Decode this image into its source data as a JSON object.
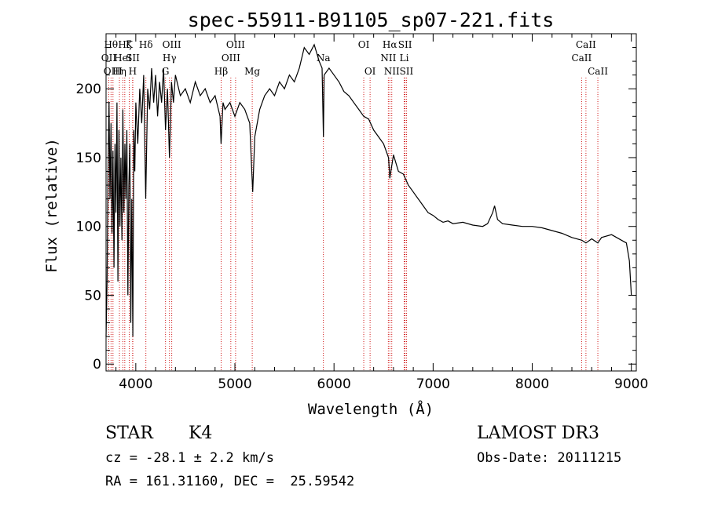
{
  "chart_data": {
    "type": "line",
    "title": "spec-55911-B91105_sp07-221.fits",
    "xlabel": "Wavelength (Å)",
    "ylabel": "Flux (relative)",
    "xlim": [
      3700,
      9050
    ],
    "ylim": [
      -5,
      240
    ],
    "xticks": [
      4000,
      5000,
      6000,
      7000,
      8000,
      9000
    ],
    "yticks": [
      0,
      50,
      100,
      150,
      200
    ],
    "grid": false,
    "series": [
      {
        "name": "flux",
        "points": [
          [
            3700,
            20
          ],
          [
            3710,
            60
          ],
          [
            3720,
            140
          ],
          [
            3730,
            190
          ],
          [
            3740,
            120
          ],
          [
            3750,
            175
          ],
          [
            3760,
            95
          ],
          [
            3770,
            155
          ],
          [
            3780,
            70
          ],
          [
            3790,
            160
          ],
          [
            3800,
            110
          ],
          [
            3810,
            190
          ],
          [
            3820,
            60
          ],
          [
            3830,
            170
          ],
          [
            3840,
            100
          ],
          [
            3850,
            150
          ],
          [
            3860,
            90
          ],
          [
            3870,
            185
          ],
          [
            3880,
            110
          ],
          [
            3890,
            160
          ],
          [
            3900,
            120
          ],
          [
            3910,
            170
          ],
          [
            3920,
            50
          ],
          [
            3930,
            130
          ],
          [
            3940,
            160
          ],
          [
            3950,
            30
          ],
          [
            3960,
            120
          ],
          [
            3970,
            20
          ],
          [
            3980,
            170
          ],
          [
            3990,
            140
          ],
          [
            4000,
            190
          ],
          [
            4020,
            160
          ],
          [
            4040,
            200
          ],
          [
            4060,
            175
          ],
          [
            4080,
            210
          ],
          [
            4100,
            120
          ],
          [
            4120,
            200
          ],
          [
            4140,
            185
          ],
          [
            4160,
            215
          ],
          [
            4180,
            190
          ],
          [
            4200,
            210
          ],
          [
            4220,
            180
          ],
          [
            4240,
            205
          ],
          [
            4260,
            190
          ],
          [
            4280,
            215
          ],
          [
            4300,
            170
          ],
          [
            4320,
            200
          ],
          [
            4340,
            150
          ],
          [
            4360,
            205
          ],
          [
            4380,
            190
          ],
          [
            4400,
            210
          ],
          [
            4450,
            195
          ],
          [
            4500,
            200
          ],
          [
            4550,
            190
          ],
          [
            4600,
            205
          ],
          [
            4650,
            195
          ],
          [
            4700,
            200
          ],
          [
            4750,
            190
          ],
          [
            4800,
            195
          ],
          [
            4850,
            180
          ],
          [
            4860,
            160
          ],
          [
            4880,
            190
          ],
          [
            4900,
            185
          ],
          [
            4950,
            190
          ],
          [
            5000,
            180
          ],
          [
            5050,
            190
          ],
          [
            5100,
            185
          ],
          [
            5150,
            175
          ],
          [
            5170,
            140
          ],
          [
            5180,
            125
          ],
          [
            5200,
            165
          ],
          [
            5250,
            185
          ],
          [
            5300,
            195
          ],
          [
            5350,
            200
          ],
          [
            5400,
            195
          ],
          [
            5450,
            205
          ],
          [
            5500,
            200
          ],
          [
            5550,
            210
          ],
          [
            5600,
            205
          ],
          [
            5650,
            215
          ],
          [
            5700,
            230
          ],
          [
            5750,
            225
          ],
          [
            5800,
            232
          ],
          [
            5850,
            220
          ],
          [
            5880,
            215
          ],
          [
            5893,
            165
          ],
          [
            5900,
            210
          ],
          [
            5950,
            215
          ],
          [
            6000,
            210
          ],
          [
            6050,
            205
          ],
          [
            6100,
            198
          ],
          [
            6150,
            195
          ],
          [
            6200,
            190
          ],
          [
            6250,
            185
          ],
          [
            6300,
            180
          ],
          [
            6350,
            178
          ],
          [
            6400,
            170
          ],
          [
            6450,
            165
          ],
          [
            6500,
            160
          ],
          [
            6550,
            150
          ],
          [
            6563,
            135
          ],
          [
            6600,
            152
          ],
          [
            6650,
            140
          ],
          [
            6700,
            138
          ],
          [
            6750,
            130
          ],
          [
            6800,
            125
          ],
          [
            6850,
            120
          ],
          [
            6900,
            115
          ],
          [
            6950,
            110
          ],
          [
            7000,
            108
          ],
          [
            7050,
            105
          ],
          [
            7100,
            103
          ],
          [
            7150,
            104
          ],
          [
            7200,
            102
          ],
          [
            7300,
            103
          ],
          [
            7400,
            101
          ],
          [
            7500,
            100
          ],
          [
            7550,
            102
          ],
          [
            7600,
            110
          ],
          [
            7620,
            115
          ],
          [
            7650,
            105
          ],
          [
            7700,
            102
          ],
          [
            7800,
            101
          ],
          [
            7900,
            100
          ],
          [
            8000,
            100
          ],
          [
            8100,
            99
          ],
          [
            8200,
            97
          ],
          [
            8300,
            95
          ],
          [
            8400,
            92
          ],
          [
            8500,
            90
          ],
          [
            8542,
            88
          ],
          [
            8600,
            91
          ],
          [
            8662,
            88
          ],
          [
            8700,
            92
          ],
          [
            8800,
            94
          ],
          [
            8900,
            90
          ],
          [
            8950,
            88
          ],
          [
            8980,
            75
          ],
          [
            9000,
            50
          ]
        ]
      }
    ],
    "lines": [
      {
        "wave": 3727,
        "label": "OII",
        "row": 2
      },
      {
        "wave": 3750,
        "label": "Hθ",
        "row": 1
      },
      {
        "wave": 3770,
        "label": "OIII",
        "row": 3
      },
      {
        "wave": 3835,
        "label": "Hη",
        "row": 3
      },
      {
        "wave": 3869,
        "label": "HeI",
        "row": 2
      },
      {
        "wave": 3889,
        "label": "Hζ",
        "row": 1
      },
      {
        "wave": 3934,
        "label": "K",
        "row": 1
      },
      {
        "wave": 3968,
        "label": "H",
        "row": 3
      },
      {
        "wave": 3970,
        "label": "SII",
        "row": 2
      },
      {
        "wave": 4102,
        "label": "Hδ",
        "row": 1
      },
      {
        "wave": 4300,
        "label": "G",
        "row": 3
      },
      {
        "wave": 4340,
        "label": "Hγ",
        "row": 2
      },
      {
        "wave": 4363,
        "label": "OIII",
        "row": 1
      },
      {
        "wave": 4861,
        "label": "Hβ",
        "row": 3
      },
      {
        "wave": 4959,
        "label": "OIII",
        "row": 2
      },
      {
        "wave": 5007,
        "label": "OIII",
        "row": 1
      },
      {
        "wave": 5175,
        "label": "Mg",
        "row": 3
      },
      {
        "wave": 5893,
        "label": "Na",
        "row": 2
      },
      {
        "wave": 6300,
        "label": "OI",
        "row": 1
      },
      {
        "wave": 6364,
        "label": "OI",
        "row": 3
      },
      {
        "wave": 6548,
        "label": "NII",
        "row": 2
      },
      {
        "wave": 6563,
        "label": "Hα",
        "row": 1
      },
      {
        "wave": 6583,
        "label": "NII",
        "row": 3
      },
      {
        "wave": 6708,
        "label": "Li",
        "row": 2
      },
      {
        "wave": 6717,
        "label": "SII",
        "row": 1
      },
      {
        "wave": 6731,
        "label": "SII",
        "row": 3
      },
      {
        "wave": 8498,
        "label": "CaII",
        "row": 2
      },
      {
        "wave": 8542,
        "label": "CaII",
        "row": 1
      },
      {
        "wave": 8662,
        "label": "CaII",
        "row": 3
      }
    ]
  },
  "info": {
    "object_class": "STAR",
    "subclass": "K4",
    "survey": "LAMOST DR3",
    "redshift": "cz = -28.1 ± 2.2 km/s",
    "obs_date": "Obs-Date: 20111215",
    "coords": "RA = 161.31160, DEC =  25.59542"
  }
}
